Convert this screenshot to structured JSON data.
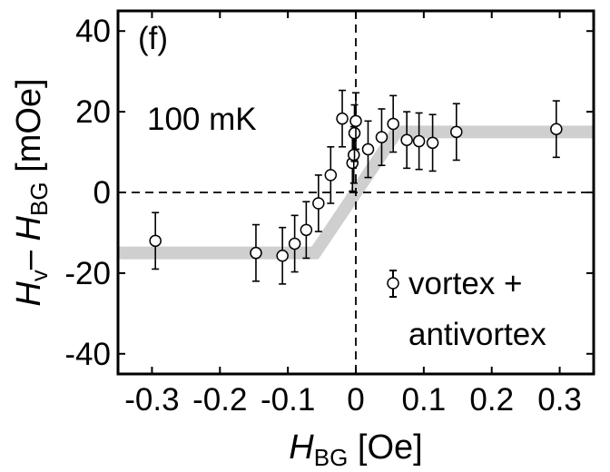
{
  "chart_data": {
    "type": "scatter",
    "panel_label": "(f)",
    "annotation": "100 mK",
    "xlabel": {
      "main": "H",
      "sub": "BG",
      "unit": " [Oe]"
    },
    "ylabel": {
      "main1": "H",
      "sub1": "v",
      "dash": "– ",
      "main2": "H",
      "sub2": "BG",
      "unit": " [mOe]"
    },
    "xlim": [
      -0.35,
      0.35
    ],
    "ylim": [
      -45,
      45
    ],
    "x_ticks": [
      -0.3,
      -0.2,
      -0.1,
      0,
      0.1,
      0.2,
      0.3
    ],
    "x_tick_labels": [
      "-0.3",
      "-0.2",
      "-0.1",
      "0",
      "0.1",
      "0.2",
      "0.3"
    ],
    "y_ticks": [
      -40,
      -20,
      0,
      20,
      40
    ],
    "y_tick_labels": [
      "-40",
      "-20",
      "0",
      "20",
      "40"
    ],
    "legend": {
      "placement": "bottom-right",
      "line1": "vortex +",
      "line2": "antivortex"
    },
    "reference_lines": {
      "x": 0,
      "y": 0,
      "style": "dashed"
    },
    "guide_band": {
      "color": "#cfcfcf",
      "points": [
        [
          -0.35,
          -15
        ],
        [
          -0.06,
          -15
        ],
        [
          0.06,
          15
        ],
        [
          0.35,
          15
        ]
      ]
    },
    "series": [
      {
        "marker": "open-circle",
        "points": [
          {
            "x": -0.295,
            "y": -12.0,
            "err": 7.0
          },
          {
            "x": -0.147,
            "y": -15.0,
            "err": 7.0
          },
          {
            "x": -0.108,
            "y": -15.7,
            "err": 7.0
          },
          {
            "x": -0.09,
            "y": -12.7,
            "err": 7.0
          },
          {
            "x": -0.073,
            "y": -9.3,
            "err": 7.0
          },
          {
            "x": -0.055,
            "y": -2.7,
            "err": 7.0
          },
          {
            "x": -0.037,
            "y": 4.3,
            "err": 7.0
          },
          {
            "x": -0.02,
            "y": 18.3,
            "err": 7.0
          },
          {
            "x": -0.005,
            "y": 7.3,
            "err": 7.0
          },
          {
            "x": -0.003,
            "y": 9.3,
            "err": 7.0
          },
          {
            "x": -0.002,
            "y": 14.7,
            "err": 7.0
          },
          {
            "x": 0.0,
            "y": 17.7,
            "err": 7.0
          },
          {
            "x": 0.018,
            "y": 10.7,
            "err": 7.0
          },
          {
            "x": 0.038,
            "y": 13.7,
            "err": 7.0
          },
          {
            "x": 0.055,
            "y": 17.0,
            "err": 7.0
          },
          {
            "x": 0.075,
            "y": 13.0,
            "err": 7.0
          },
          {
            "x": 0.093,
            "y": 12.7,
            "err": 7.0
          },
          {
            "x": 0.113,
            "y": 12.3,
            "err": 7.0
          },
          {
            "x": 0.148,
            "y": 15.0,
            "err": 7.0
          },
          {
            "x": 0.295,
            "y": 15.7,
            "err": 7.0
          }
        ]
      }
    ]
  }
}
